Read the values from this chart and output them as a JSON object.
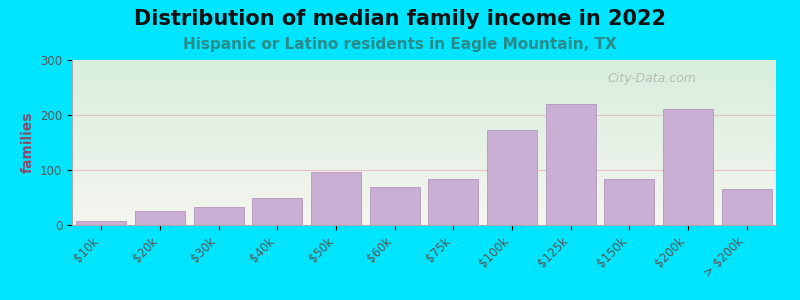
{
  "title": "Distribution of median family income in 2022",
  "subtitle": "Hispanic or Latino residents in Eagle Mountain, TX",
  "categories": [
    "$10k",
    "$20k",
    "$30k",
    "$40k",
    "$50k",
    "$60k",
    "$75k",
    "$100k",
    "$125k",
    "$150k",
    "$200k",
    "> $200k"
  ],
  "values": [
    8,
    25,
    33,
    50,
    97,
    70,
    83,
    172,
    220,
    83,
    210,
    65
  ],
  "bar_color": "#c9afd4",
  "bar_edge_color": "#b89fc0",
  "background_outer": "#00e5ff",
  "background_inner_top": "#d8eedd",
  "background_inner_bottom": "#f5f5f0",
  "ylabel": "families",
  "ylim": [
    0,
    300
  ],
  "yticks": [
    0,
    100,
    200,
    300
  ],
  "title_fontsize": 15,
  "subtitle_fontsize": 11,
  "ylabel_color": "#8b4a6e",
  "watermark": "City-Data.com",
  "grid_color": "#e8a0b0",
  "grid_alpha": 0.6
}
